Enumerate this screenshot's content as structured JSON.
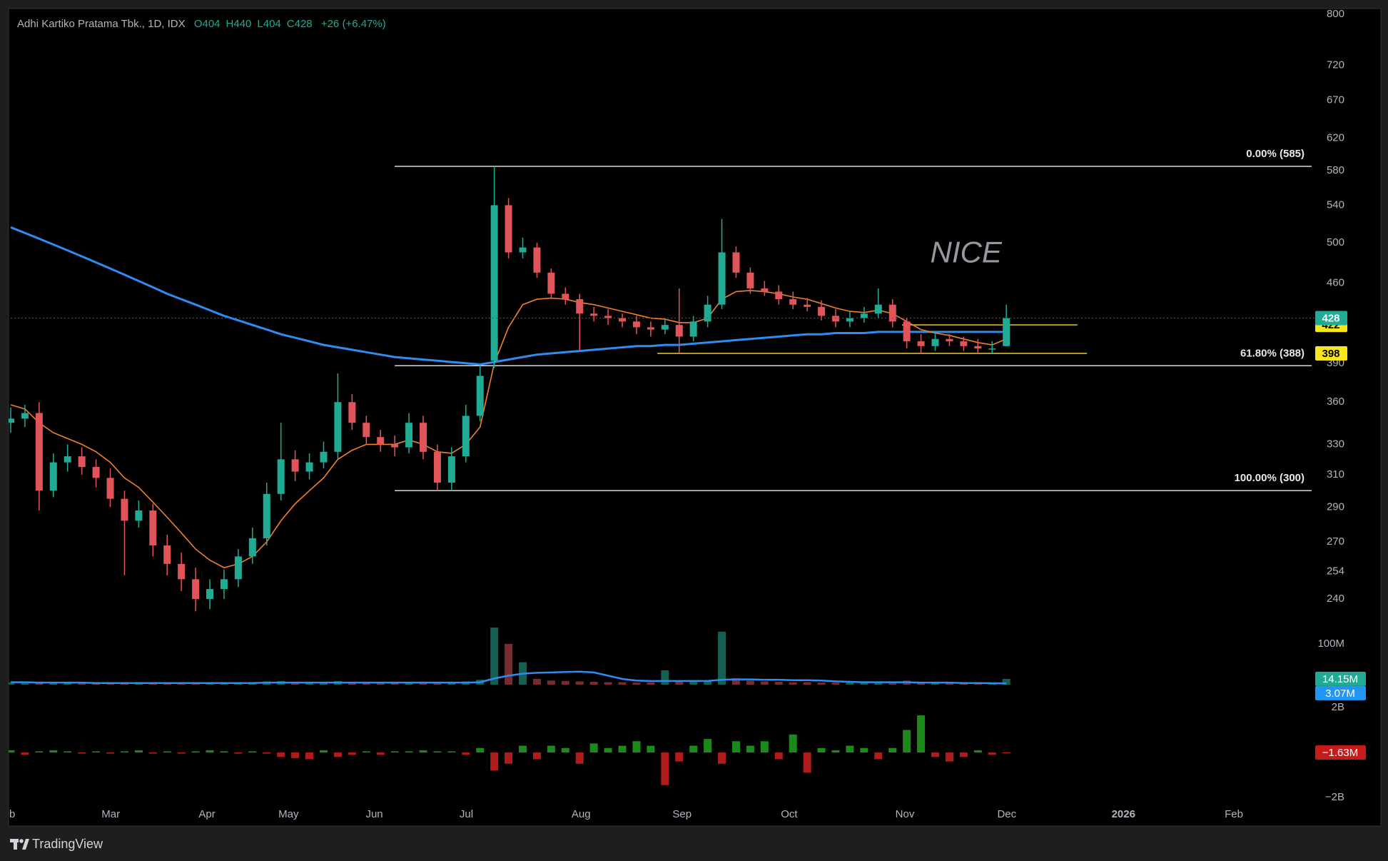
{
  "header": {
    "title": "Adhi Kartiko Pratama Tbk., 1D, IDX",
    "ohlc": [
      {
        "label": "O",
        "value": 404
      },
      {
        "label": "H",
        "value": 440
      },
      {
        "label": "L",
        "value": 404
      },
      {
        "label": "C",
        "value": 428
      }
    ],
    "change": "+26 (+6.47%)"
  },
  "footer": {
    "brand": "TradingView"
  },
  "chart_data": [
    {
      "type": "candlestick",
      "log": true,
      "up_color": "#22ab94",
      "down_color": "#e0545a",
      "xlim": [
        0,
        275
      ],
      "ylim": [
        230,
        806
      ],
      "xticks": [
        {
          "value": -1,
          "label": "Feb"
        },
        {
          "value": 21.1,
          "label": "Mar"
        },
        {
          "value": 41.4,
          "label": "Apr"
        },
        {
          "value": 58.6,
          "label": "May"
        },
        {
          "value": 76.7,
          "label": "Jun"
        },
        {
          "value": 96.1,
          "label": "Jul"
        },
        {
          "value": 120.3,
          "label": "Aug"
        },
        {
          "value": 141.6,
          "label": "Sep"
        },
        {
          "value": 164.2,
          "label": "Oct"
        },
        {
          "value": 188.6,
          "label": "Nov"
        },
        {
          "value": 210.1,
          "label": "Dec"
        },
        {
          "value": 234.7,
          "label": "2026"
        },
        {
          "value": 258,
          "label": "Feb"
        }
      ],
      "yticks": [
        240,
        254,
        270,
        290,
        310,
        330,
        360,
        390,
        460,
        500,
        540,
        580,
        620,
        670,
        720,
        800
      ],
      "x": [
        0,
        3,
        6,
        9,
        12,
        15,
        18,
        21,
        24,
        27,
        30,
        33,
        36,
        39,
        42,
        45,
        48,
        51,
        54,
        57,
        60,
        63,
        66,
        69,
        72,
        75,
        78,
        81,
        84,
        87,
        90,
        93,
        96,
        99,
        102,
        105,
        108,
        111,
        114,
        117,
        120,
        123,
        126,
        129,
        132,
        135,
        138,
        141,
        144,
        147,
        150,
        153,
        156,
        159,
        162,
        165,
        168,
        171,
        174,
        177,
        180,
        183,
        186,
        189,
        192,
        195,
        198,
        201,
        204,
        207,
        210
      ],
      "open": [
        345,
        348,
        352,
        300,
        318,
        322,
        315,
        308,
        295,
        282,
        288,
        268,
        258,
        250,
        240,
        245,
        250,
        262,
        272,
        298,
        320,
        312,
        318,
        325,
        360,
        345,
        335,
        330,
        328,
        345,
        325,
        305,
        322,
        350,
        392,
        540,
        490,
        495,
        470,
        450,
        445,
        432,
        430,
        428,
        425,
        420,
        418,
        422,
        412,
        425,
        440,
        490,
        470,
        455,
        452,
        445,
        440,
        438,
        430,
        425,
        428,
        432,
        440,
        425,
        408,
        404,
        410,
        408,
        404,
        402,
        404
      ],
      "high": [
        356,
        358,
        360,
        324,
        330,
        328,
        320,
        314,
        300,
        294,
        292,
        274,
        264,
        256,
        250,
        255,
        266,
        278,
        305,
        345,
        326,
        324,
        332,
        382,
        366,
        350,
        340,
        336,
        352,
        350,
        330,
        328,
        358,
        388,
        585,
        548,
        505,
        500,
        474,
        456,
        450,
        438,
        436,
        432,
        430,
        425,
        428,
        455,
        430,
        448,
        525,
        496,
        475,
        462,
        458,
        452,
        446,
        444,
        436,
        434,
        438,
        455,
        445,
        428,
        414,
        416,
        414,
        412,
        410,
        408,
        440
      ],
      "low": [
        338,
        342,
        288,
        296,
        312,
        310,
        302,
        290,
        252,
        278,
        262,
        252,
        244,
        234,
        235,
        240,
        246,
        258,
        268,
        294,
        306,
        307,
        314,
        320,
        340,
        330,
        325,
        322,
        324,
        320,
        300,
        300,
        318,
        346,
        386,
        484,
        484,
        465,
        445,
        440,
        400,
        425,
        422,
        420,
        414,
        412,
        414,
        398,
        408,
        420,
        436,
        465,
        450,
        448,
        440,
        436,
        434,
        426,
        420,
        420,
        424,
        428,
        420,
        402,
        398,
        400,
        404,
        400,
        398,
        398,
        404
      ],
      "close": [
        348,
        352,
        300,
        318,
        322,
        315,
        308,
        295,
        282,
        288,
        268,
        258,
        250,
        240,
        245,
        250,
        262,
        272,
        298,
        320,
        312,
        318,
        325,
        360,
        345,
        335,
        330,
        328,
        345,
        325,
        305,
        322,
        350,
        380,
        540,
        490,
        495,
        470,
        450,
        445,
        432,
        430,
        428,
        425,
        420,
        418,
        422,
        412,
        425,
        440,
        490,
        470,
        455,
        452,
        445,
        440,
        438,
        430,
        425,
        428,
        432,
        440,
        425,
        408,
        404,
        410,
        408,
        404,
        402,
        402,
        428
      ],
      "overlays": [
        {
          "color": "#2f8cf0",
          "values": [
            516,
            510,
            504,
            498,
            492,
            486,
            480,
            474,
            468,
            462,
            456,
            450,
            445,
            440,
            435,
            430,
            426,
            422,
            418,
            414,
            411,
            408,
            405,
            403,
            401,
            399,
            397,
            395,
            394,
            393,
            392,
            391,
            390,
            389,
            391,
            393,
            395,
            397,
            398,
            399,
            400,
            401,
            402,
            403,
            404,
            404,
            405,
            405,
            406,
            407,
            408,
            409,
            410,
            411,
            412,
            413,
            414,
            414,
            415,
            415,
            415,
            416,
            416,
            416,
            416,
            416,
            416,
            416,
            416,
            416,
            416
          ]
        },
        {
          "color": "#f0802a",
          "values": [
            358,
            355,
            345,
            338,
            334,
            330,
            325,
            318,
            308,
            302,
            293,
            284,
            275,
            266,
            260,
            256,
            258,
            262,
            270,
            282,
            292,
            300,
            308,
            320,
            326,
            330,
            330,
            330,
            333,
            330,
            325,
            324,
            330,
            342,
            390,
            420,
            440,
            445,
            446,
            445,
            442,
            440,
            437,
            434,
            431,
            428,
            427,
            424,
            424,
            428,
            445,
            452,
            453,
            452,
            450,
            447,
            445,
            441,
            437,
            434,
            433,
            435,
            432,
            425,
            418,
            415,
            413,
            410,
            407,
            405,
            410
          ]
        }
      ],
      "levels": [
        {
          "value": 585,
          "label": "0.00% (585)"
        },
        {
          "value": 388,
          "label": "61.80% (388)"
        },
        {
          "value": 300,
          "label": "100.00% (300)"
        }
      ],
      "levels_x": [
        81,
        274.4
      ],
      "hlines": [
        {
          "value": 422,
          "x": [
            188,
            225
          ]
        },
        {
          "value": 398,
          "x": [
            136.4,
            227
          ]
        }
      ],
      "hline_color": "#b59a1e",
      "annotation": {
        "text": "NICE",
        "x": 201.5,
        "y": 488
      },
      "price_tags": [
        {
          "value": 422,
          "color": "#f7e51e",
          "text_color": "#000000"
        },
        {
          "value": 398,
          "color": "#f7e51e",
          "text_color": "#000000"
        },
        {
          "value": 428,
          "color": "#22ab94",
          "text_color": "#ffffff"
        }
      ]
    },
    {
      "type": "bar",
      "ylim": [
        0,
        147000000
      ],
      "up_color": "#145e54",
      "down_color": "#7a2b30",
      "yticks": [
        {
          "value": 100000000,
          "label": "100M"
        }
      ],
      "values": [
        6000000.0,
        5000000.0,
        7000000.0,
        4000000.0,
        5000000.0,
        4000000.0,
        3000000.0,
        4000000.0,
        5000000.0,
        3000000.0,
        4000000.0,
        3000000.0,
        5000000.0,
        6000000.0,
        3000000.0,
        4000000.0,
        4000000.0,
        5000000.0,
        8000000.0,
        9000000.0,
        5000000.0,
        4000000.0,
        5000000.0,
        9000000.0,
        6000000.0,
        5000000.0,
        4000000.0,
        4000000.0,
        5000000.0,
        4000000.0,
        5000000.0,
        4000000.0,
        8000000.0,
        12000000.0,
        140000000.0,
        100000000.0,
        55000000.0,
        14000000.0,
        10000000.0,
        9000000.0,
        8000000.0,
        7000000.0,
        6000000.0,
        6000000.0,
        5000000.0,
        6000000.0,
        35000000.0,
        9000000.0,
        7000000.0,
        8000000.0,
        130000000.0,
        16000000.0,
        10000000.0,
        8000000.0,
        7000000.0,
        6000000.0,
        6000000.0,
        5000000.0,
        5000000.0,
        5000000.0,
        6000000.0,
        7000000.0,
        6000000.0,
        10000000.0,
        6000000.0,
        5000000.0,
        5000000.0,
        4000000.0,
        4000000.0,
        4000000.0,
        14150000.0
      ],
      "overlays": [
        {
          "color": "#2f8cf0",
          "values": [
            6000000.0,
            6000000.0,
            5000000.0,
            5000000.0,
            5000000.0,
            5000000.0,
            4000000.0,
            4000000.0,
            4000000.0,
            4000000.0,
            4000000.0,
            4000000.0,
            4000000.0,
            4000000.0,
            4000000.0,
            4000000.0,
            4000000.0,
            4000000.0,
            5000000.0,
            5000000.0,
            5000000.0,
            5000000.0,
            5000000.0,
            5000000.0,
            5000000.0,
            5000000.0,
            5000000.0,
            5000000.0,
            5000000.0,
            5000000.0,
            5000000.0,
            5000000.0,
            5000000.0,
            6000000.0,
            15000000.0,
            22000000.0,
            27000000.0,
            29000000.0,
            30000000.0,
            31000000.0,
            32000000.0,
            30000000.0,
            22000000.0,
            14000000.0,
            10000000.0,
            9000000.0,
            9000000.0,
            9000000.0,
            9000000.0,
            9000000.0,
            12000000.0,
            13000000.0,
            13000000.0,
            12000000.0,
            12000000.0,
            11000000.0,
            11000000.0,
            10000000.0,
            8000000.0,
            7000000.0,
            6000000.0,
            6000000.0,
            6000000.0,
            6000000.0,
            5000000.0,
            5000000.0,
            5000000.0,
            4000000.0,
            4000000.0,
            3500000.0,
            3070000.0
          ]
        }
      ],
      "tags": [
        {
          "value": 14150000,
          "label": "14.15M",
          "color": "#22ab94"
        },
        {
          "value": 3070000,
          "label": "3.07M",
          "color": "#2196f3"
        }
      ]
    },
    {
      "type": "bar",
      "ylim": [
        -2350000000,
        2350000000
      ],
      "up_color": "#1b8a1b",
      "down_color": "#b01c1c",
      "signed": true,
      "yticks": [
        {
          "value": 2000000000,
          "label": "2B"
        },
        {
          "value": -2000000000,
          "label": "−2B"
        }
      ],
      "values": [
        100000000.0,
        -100000000.0,
        50000000.0,
        100000000.0,
        50000000.0,
        -50000000.0,
        50000000.0,
        -50000000.0,
        50000000.0,
        100000000.0,
        -50000000.0,
        50000000.0,
        -50000000.0,
        50000000.0,
        100000000.0,
        50000000.0,
        -50000000.0,
        50000000.0,
        -50000000.0,
        -200000000.0,
        -250000000.0,
        -300000000.0,
        100000000.0,
        -200000000.0,
        -100000000.0,
        50000000.0,
        -100000000.0,
        50000000.0,
        50000000.0,
        100000000.0,
        50000000.0,
        50000000.0,
        -100000000.0,
        200000000.0,
        -800000000.0,
        -500000000.0,
        300000000.0,
        -300000000.0,
        300000000.0,
        200000000.0,
        -500000000.0,
        400000000.0,
        200000000.0,
        300000000.0,
        500000000.0,
        300000000.0,
        -1450000000.0,
        -400000000.0,
        300000000.0,
        600000000.0,
        -500000000.0,
        500000000.0,
        300000000.0,
        500000000.0,
        -300000000.0,
        800000000.0,
        -900000000.0,
        200000000.0,
        100000000.0,
        300000000.0,
        200000000.0,
        -300000000.0,
        200000000.0,
        1000000000.0,
        1650000000.0,
        -200000000.0,
        -400000000.0,
        -200000000.0,
        100000000.0,
        -100000000.0,
        -1630000.0
      ],
      "tags": [
        {
          "value": -1630000,
          "label": "−1.63M",
          "color": "#c41b1b"
        }
      ]
    }
  ]
}
